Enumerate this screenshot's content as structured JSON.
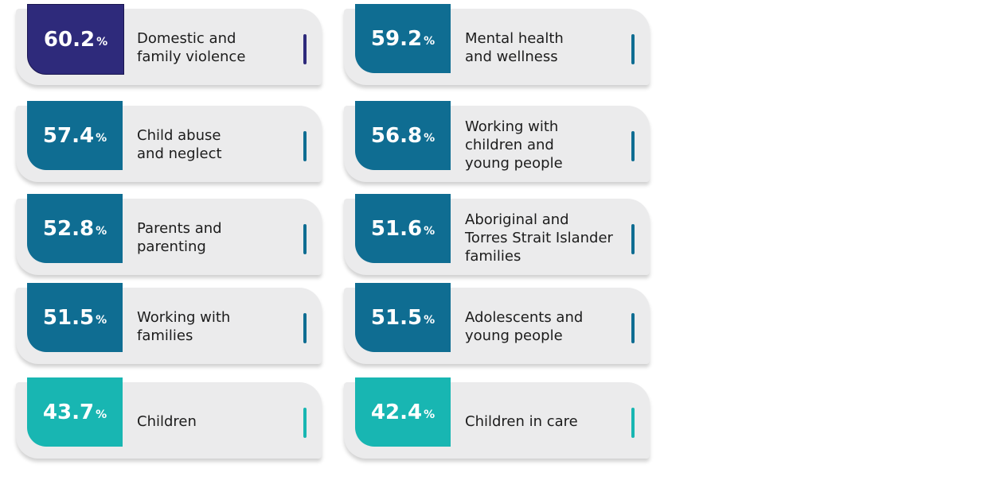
{
  "colors": {
    "top": "#2e2a7b",
    "high": "#0f6d92",
    "low": "#18b6b2",
    "card_bg": "#ebebec",
    "text": "#1c1c1c"
  },
  "chart_data": {
    "type": "table",
    "unit": "%",
    "items": [
      {
        "value": 60.2,
        "display": "60.2",
        "label": "Domestic and family violence",
        "lines": [
          "Domestic and",
          "family violence"
        ],
        "tier": "top"
      },
      {
        "value": 59.2,
        "display": "59.2",
        "label": "Mental health and wellness",
        "lines": [
          "Mental health",
          "and wellness"
        ],
        "tier": "high"
      },
      {
        "value": 57.4,
        "display": "57.4",
        "label": "Child abuse and neglect",
        "lines": [
          "Child abuse",
          "and neglect"
        ],
        "tier": "high"
      },
      {
        "value": 56.8,
        "display": "56.8",
        "label": "Working with children and young people",
        "lines": [
          "Working with",
          "children and",
          "young people"
        ],
        "tier": "high"
      },
      {
        "value": 52.8,
        "display": "52.8",
        "label": "Parents and parenting",
        "lines": [
          "Parents and",
          "parenting"
        ],
        "tier": "high"
      },
      {
        "value": 51.6,
        "display": "51.6",
        "label": "Aboriginal and Torres Strait Islander families",
        "lines": [
          "Aboriginal and",
          "Torres Strait Islander",
          "families"
        ],
        "tier": "high"
      },
      {
        "value": 51.5,
        "display": "51.5",
        "label": "Working with families",
        "lines": [
          "Working with",
          "families"
        ],
        "tier": "high"
      },
      {
        "value": 51.5,
        "display": "51.5",
        "label": "Adolescents and young people",
        "lines": [
          "Adolescents and",
          "young people"
        ],
        "tier": "high"
      },
      {
        "value": 43.7,
        "display": "43.7",
        "label": "Children",
        "lines": [
          "Children"
        ],
        "tier": "low"
      },
      {
        "value": 42.4,
        "display": "42.4",
        "label": "Children in care",
        "lines": [
          "Children in care"
        ],
        "tier": "low"
      }
    ]
  }
}
